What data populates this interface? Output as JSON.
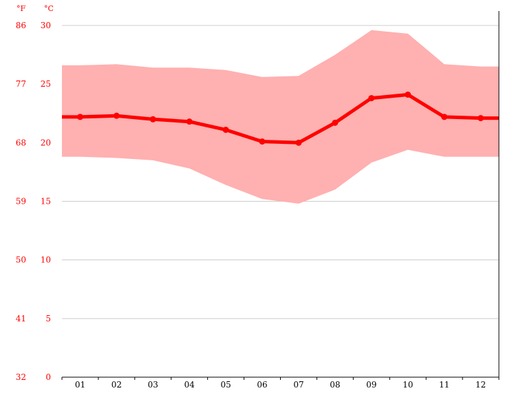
{
  "chart_data": {
    "type": "area",
    "title": "",
    "xlabel": "",
    "ylabel": "",
    "units": {
      "fahrenheit": "°F",
      "celsius": "°C"
    },
    "categories": [
      "01",
      "02",
      "03",
      "04",
      "05",
      "06",
      "07",
      "08",
      "09",
      "10",
      "11",
      "12"
    ],
    "y_ticks_celsius": [
      "30",
      "25",
      "20",
      "15",
      "10",
      "5",
      "0"
    ],
    "y_ticks_fahrenheit": [
      "86",
      "77",
      "68",
      "59",
      "50",
      "41",
      "32"
    ],
    "ylim": [
      0,
      30
    ],
    "grid": true,
    "series": [
      {
        "values": [
          22.2,
          22.3,
          22.0,
          21.8,
          21.1,
          20.1,
          20.0,
          21.7,
          23.8,
          24.1,
          22.2,
          22.1
        ]
      },
      {
        "values": [
          26.6,
          26.7,
          26.4,
          26.4,
          26.2,
          25.6,
          25.7,
          27.5,
          29.6,
          29.3,
          26.7,
          26.5
        ]
      },
      {
        "values": [
          18.8,
          18.7,
          18.5,
          17.8,
          16.4,
          15.2,
          14.8,
          16.0,
          18.3,
          19.4,
          18.8,
          18.8
        ]
      }
    ],
    "colors": {
      "line": "#ff0000",
      "band": "#ffb0b0",
      "grid": "#cccccc",
      "axis": "#000000"
    }
  }
}
